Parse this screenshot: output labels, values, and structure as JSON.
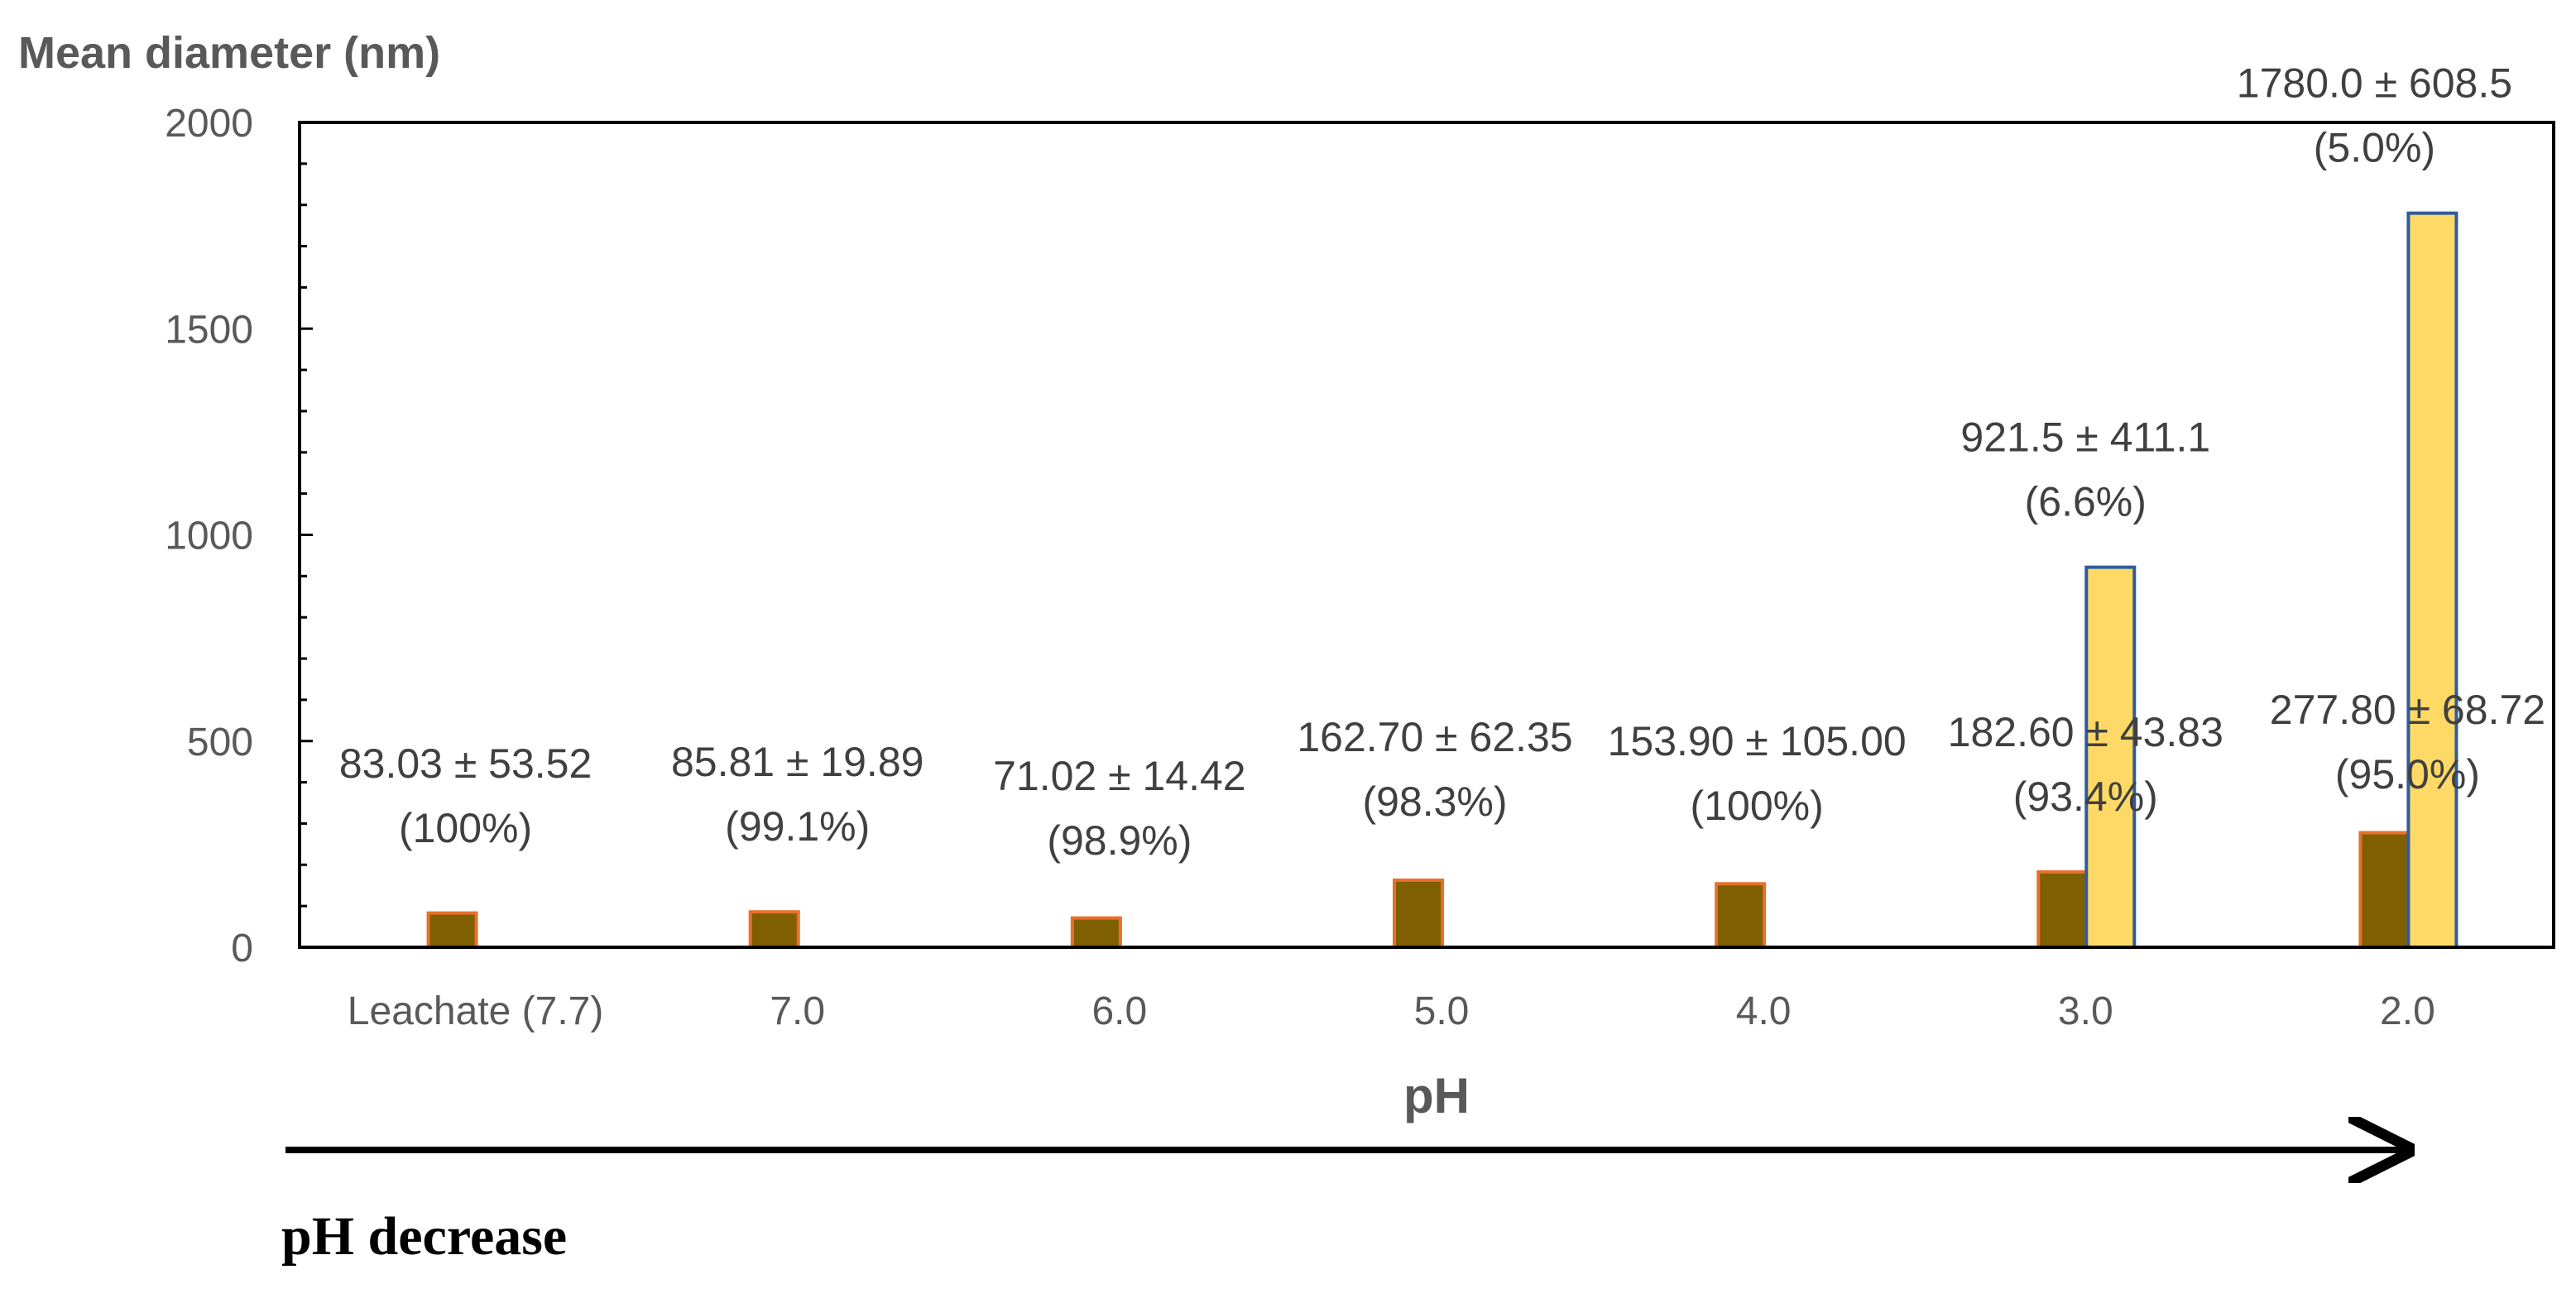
{
  "chart_data": {
    "type": "bar",
    "ylabel": "Mean diameter (nm)",
    "xlabel": "pH",
    "ylim": [
      0,
      2000
    ],
    "yticks": [
      0,
      500,
      1000,
      1500,
      2000
    ],
    "categories": [
      "Leachate (7.7)",
      "7.0",
      "6.0",
      "5.0",
      "4.0",
      "3.0",
      "2.0"
    ],
    "series": [
      {
        "color": "#7f5f00",
        "edge": "#e8702a",
        "values": [
          83.03,
          85.81,
          71.02,
          162.7,
          153.9,
          182.6,
          277.8
        ],
        "labels": [
          [
            "83.03 ± 53.52",
            "(100%)"
          ],
          [
            "85.81 ± 19.89",
            "(99.1%)"
          ],
          [
            "71.02 ± 14.42",
            "(98.9%)"
          ],
          [
            "162.70 ± 62.35",
            "(98.3%)"
          ],
          [
            "153.90 ± 105.00",
            "(100%)"
          ],
          [
            "182.60 ± 43.83",
            "(93.4%)"
          ],
          [
            "277.80 ± 68.72",
            "(95.0%)"
          ]
        ]
      },
      {
        "color": "#ffd966",
        "edge": "#2e5c9e",
        "values": [
          null,
          null,
          null,
          null,
          null,
          921.5,
          1780.0
        ],
        "labels": [
          null,
          null,
          null,
          null,
          null,
          [
            "921.5 ± 411.1",
            "(6.6%)"
          ],
          [
            "1780.0 ± 608.5",
            "(5.0%)"
          ]
        ]
      }
    ],
    "annotation": "pH decrease"
  }
}
